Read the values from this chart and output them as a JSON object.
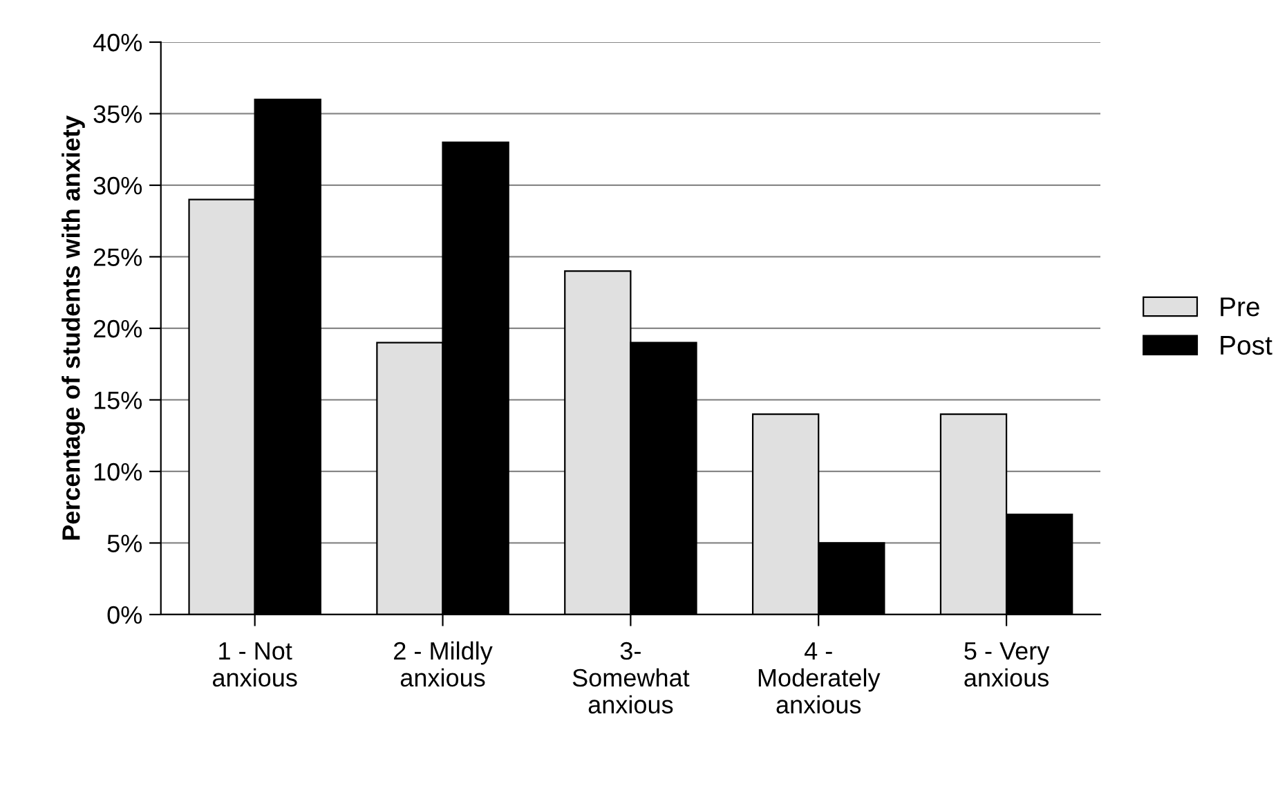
{
  "chart_data": {
    "type": "bar",
    "ylabel": "Percentage of students with anxiety",
    "categories": [
      "1 - Not\nanxious",
      "2 - Mildly\nanxious",
      "3-\nSomewhat\nanxious",
      "4 -\nModerately\nanxious",
      "5 - Very\nanxious"
    ],
    "series": [
      {
        "name": "Pre",
        "color": "#e0e0e0",
        "values": [
          29,
          19,
          24,
          14,
          14
        ]
      },
      {
        "name": "Post",
        "color": "#000000",
        "values": [
          36,
          33,
          19,
          5,
          7
        ]
      }
    ],
    "ylim": [
      0,
      40
    ],
    "yticks": [
      {
        "value": 0,
        "label": "0%"
      },
      {
        "value": 5,
        "label": "5%"
      },
      {
        "value": 10,
        "label": "10%"
      },
      {
        "value": 15,
        "label": "15%"
      },
      {
        "value": 20,
        "label": "20%"
      },
      {
        "value": 25,
        "label": "25%"
      },
      {
        "value": 30,
        "label": "30%"
      },
      {
        "value": 35,
        "label": "35%"
      },
      {
        "value": 40,
        "label": "40%"
      }
    ],
    "grid": "y",
    "legend": "right"
  }
}
